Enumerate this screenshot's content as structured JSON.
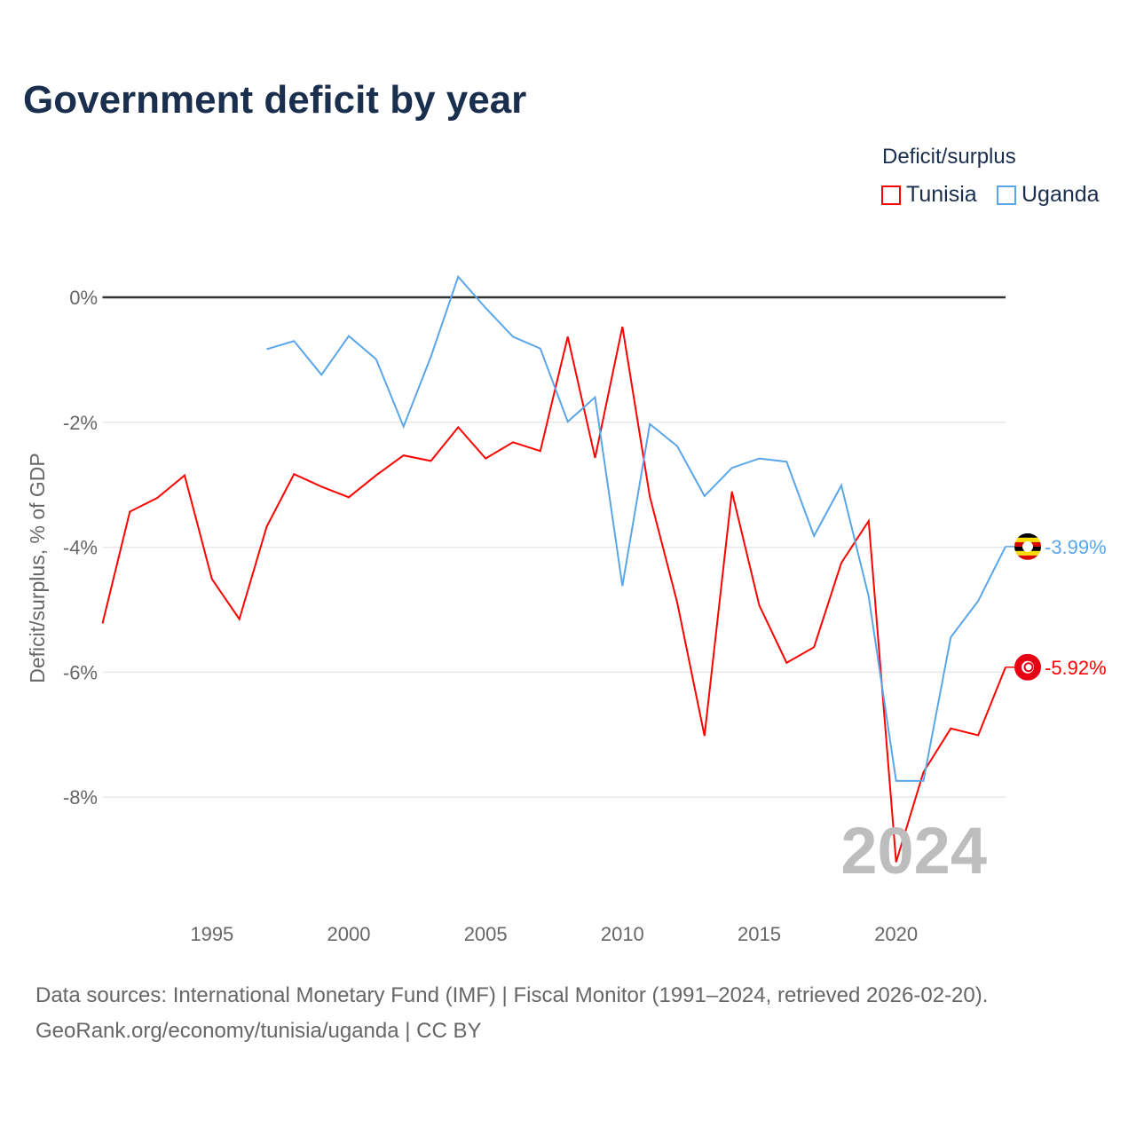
{
  "chart_data": {
    "type": "line",
    "title": "Government deficit by year",
    "xlabel": "",
    "ylabel": "Deficit/surplus, % of GDP",
    "xlim": [
      1991,
      2024
    ],
    "ylim": [
      -10,
      0.5
    ],
    "x_ticks": [
      1995,
      2000,
      2005,
      2010,
      2015,
      2020
    ],
    "y_ticks": [
      0,
      -2,
      -4,
      -6,
      -8
    ],
    "y_tick_labels": [
      "0%",
      "-2%",
      "-4%",
      "-6%",
      "-8%"
    ],
    "legend_title": "Deficit/surplus",
    "legend_position": "top-right",
    "year_watermark": "2024",
    "series": [
      {
        "name": "Tunisia",
        "color": "#ff0000",
        "flag": "tunisia-flag",
        "end_label": "-5.92%",
        "x": [
          1991,
          1992,
          1993,
          1994,
          1995,
          1996,
          1997,
          1998,
          1999,
          2000,
          2001,
          2002,
          2003,
          2004,
          2005,
          2006,
          2007,
          2008,
          2009,
          2010,
          2011,
          2012,
          2013,
          2014,
          2015,
          2016,
          2017,
          2018,
          2019,
          2020,
          2021,
          2022,
          2023,
          2024
        ],
        "values": [
          -5.22,
          -3.43,
          -3.21,
          -2.85,
          -4.51,
          -5.15,
          -3.67,
          -2.83,
          -3.03,
          -3.2,
          -2.85,
          -2.53,
          -2.62,
          -2.08,
          -2.58,
          -2.32,
          -2.46,
          -0.63,
          -2.57,
          -0.47,
          -3.19,
          -4.88,
          -7.02,
          -3.11,
          -4.93,
          -5.85,
          -5.6,
          -4.25,
          -3.58,
          -9.04,
          -7.6,
          -6.9,
          -7.01,
          -5.92
        ]
      },
      {
        "name": "Uganda",
        "color": "#5aa6ea",
        "flag": "uganda-flag",
        "end_label": "-3.99%",
        "x": [
          1997,
          1998,
          1999,
          2000,
          2001,
          2002,
          2003,
          2004,
          2005,
          2006,
          2007,
          2008,
          2009,
          2010,
          2011,
          2012,
          2013,
          2014,
          2015,
          2016,
          2017,
          2018,
          2019,
          2020,
          2021,
          2022,
          2023,
          2024
        ],
        "values": [
          -0.83,
          -0.7,
          -1.24,
          -0.62,
          -0.99,
          -2.07,
          -0.95,
          0.33,
          -0.17,
          -0.63,
          -0.82,
          -1.99,
          -1.6,
          -4.62,
          -2.03,
          -2.38,
          -3.18,
          -2.73,
          -2.58,
          -2.63,
          -3.82,
          -3.01,
          -4.79,
          -7.74,
          -7.74,
          -5.44,
          -4.86,
          -3.99
        ]
      }
    ]
  },
  "footer": {
    "line1": "Data sources: International Monetary Fund (IMF) | Fiscal Monitor (1991–2024, retrieved 2026-02-20).",
    "line2": "GeoRank.org/economy/tunisia/uganda | CC BY"
  }
}
